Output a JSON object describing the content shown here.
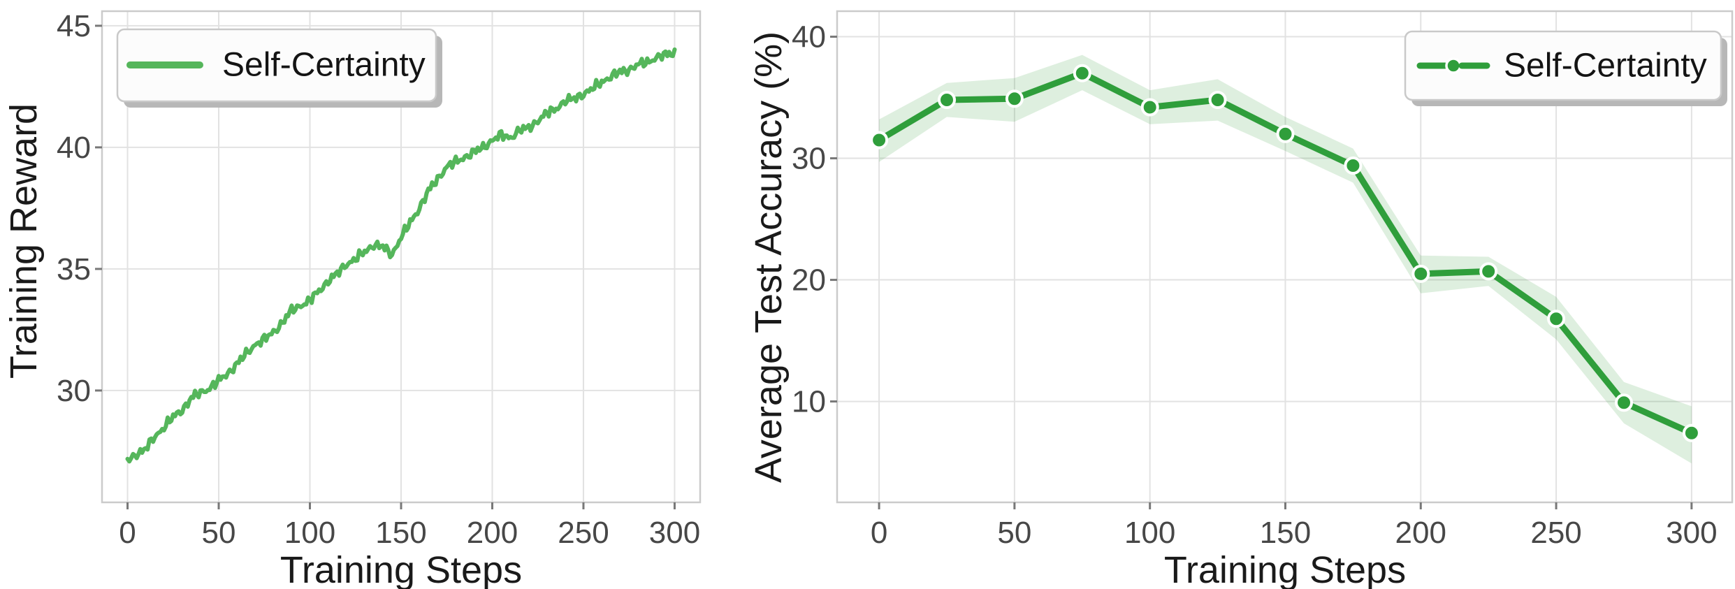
{
  "figure": {
    "background": "#ffffff",
    "grid_color": "#e2e2e2",
    "spine_color": "#cbcbcb",
    "tick_label_color": "#474747",
    "axis_label_color": "#1a1a1a"
  },
  "chart_data": [
    {
      "type": "line",
      "title": "",
      "xlabel": "Training Steps",
      "ylabel": "Training Reward",
      "legend": {
        "label": "Self-Certainty",
        "position": "upper-left",
        "sample_style": "solid-line"
      },
      "xlim": [
        -14,
        314
      ],
      "ylim": [
        25.4,
        45.6
      ],
      "xticks": [
        0,
        50,
        100,
        150,
        200,
        250,
        300
      ],
      "yticks": [
        30,
        35,
        40,
        45
      ],
      "grid": true,
      "colors": {
        "line": "#55b65b"
      },
      "series": [
        {
          "name": "Self-Certainty",
          "style": "noisy-solid",
          "x": [
            0,
            5,
            10,
            15,
            20,
            25,
            30,
            35,
            40,
            45,
            50,
            55,
            60,
            65,
            70,
            75,
            80,
            85,
            90,
            95,
            100,
            105,
            110,
            115,
            120,
            125,
            130,
            135,
            140,
            145,
            150,
            155,
            160,
            165,
            170,
            175,
            180,
            185,
            190,
            195,
            200,
            205,
            210,
            215,
            220,
            225,
            230,
            235,
            240,
            245,
            250,
            255,
            260,
            265,
            270,
            275,
            280,
            285,
            290,
            295,
            300
          ],
          "y": [
            27.1,
            27.4,
            27.6,
            28.1,
            28.5,
            28.9,
            29.2,
            29.7,
            29.9,
            30.1,
            30.4,
            30.7,
            31.1,
            31.5,
            31.9,
            32.1,
            32.4,
            32.8,
            33.3,
            33.5,
            33.7,
            34.1,
            34.5,
            34.8,
            35.2,
            35.4,
            35.7,
            36.0,
            35.9,
            35.6,
            36.3,
            36.9,
            37.5,
            38.2,
            38.7,
            39.2,
            39.4,
            39.6,
            39.8,
            40.0,
            40.3,
            40.5,
            40.4,
            40.7,
            40.8,
            41.1,
            41.4,
            41.6,
            41.9,
            42.0,
            42.2,
            42.4,
            42.7,
            42.9,
            43.1,
            43.2,
            43.4,
            43.5,
            43.7,
            43.8,
            43.9
          ],
          "noise_amplitude": 0.2
        }
      ]
    },
    {
      "type": "line",
      "title": "",
      "xlabel": "Training Steps",
      "ylabel": "Average Test Accuracy (%)",
      "legend": {
        "label": "Self-Certainty",
        "position": "upper-right",
        "sample_style": "dash-dot-dash-line"
      },
      "xlim": [
        -15.5,
        315
      ],
      "ylim": [
        1.7,
        42.1
      ],
      "xticks": [
        0,
        50,
        100,
        150,
        200,
        250,
        300
      ],
      "yticks": [
        10,
        20,
        30,
        40
      ],
      "grid": true,
      "colors": {
        "line": "#2f9e3b",
        "band": "#2f9e3b",
        "band_opacity": 0.16,
        "marker_edge": "#ffffff"
      },
      "series": [
        {
          "name": "Self-Certainty",
          "style": "marker-line-band",
          "x": [
            0,
            25,
            50,
            75,
            100,
            125,
            150,
            175,
            200,
            225,
            250,
            275,
            300
          ],
          "y": [
            31.5,
            34.8,
            34.9,
            37.0,
            34.2,
            34.8,
            32.0,
            29.4,
            20.5,
            20.7,
            16.8,
            9.9,
            7.4
          ],
          "band_upper": [
            33.2,
            36.2,
            36.6,
            38.5,
            35.6,
            36.5,
            33.4,
            30.8,
            22.0,
            21.9,
            18.6,
            11.6,
            9.6
          ],
          "band_lower": [
            29.7,
            33.4,
            33.0,
            35.6,
            32.8,
            33.1,
            30.6,
            28.0,
            18.9,
            19.5,
            15.1,
            8.2,
            4.9
          ]
        }
      ]
    }
  ]
}
